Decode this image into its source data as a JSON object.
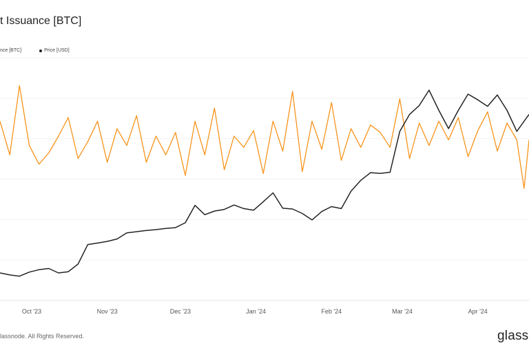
{
  "title": "t Issuance [BTC]",
  "legend": [
    {
      "label": "nce [BTC]",
      "color": "#f7931a",
      "show_dot": false
    },
    {
      "label": "Price [USD]",
      "color": "#222222",
      "show_dot": true
    }
  ],
  "footer": {
    "copyright": "lassnode. All Rights Reserved.",
    "brand": "glass"
  },
  "chart_data": {
    "type": "line",
    "x_tick_labels": [
      "Oct '23",
      "Nov '23",
      "Dec '23",
      "Jan '24",
      "Feb '24",
      "Mar '24",
      "Apr '24"
    ],
    "x_range": [
      "2023-09-18",
      "2024-04-22"
    ],
    "grid": true,
    "series": [
      {
        "name": "Price [USD]",
        "color": "#222222",
        "axis": "right",
        "ylim": [
          20000,
          80000
        ],
        "x": [
          "2023-09-18",
          "2023-09-22",
          "2023-09-26",
          "2023-09-30",
          "2023-10-04",
          "2023-10-08",
          "2023-10-12",
          "2023-10-16",
          "2023-10-20",
          "2023-10-24",
          "2023-10-28",
          "2023-11-01",
          "2023-11-05",
          "2023-11-09",
          "2023-11-13",
          "2023-11-17",
          "2023-11-21",
          "2023-11-25",
          "2023-11-29",
          "2023-12-03",
          "2023-12-07",
          "2023-12-11",
          "2023-12-15",
          "2023-12-19",
          "2023-12-23",
          "2023-12-27",
          "2023-12-31",
          "2024-01-04",
          "2024-01-08",
          "2024-01-12",
          "2024-01-16",
          "2024-01-20",
          "2024-01-24",
          "2024-01-28",
          "2024-02-01",
          "2024-02-05",
          "2024-02-09",
          "2024-02-13",
          "2024-02-17",
          "2024-02-21",
          "2024-02-25",
          "2024-02-29",
          "2024-03-04",
          "2024-03-08",
          "2024-03-12",
          "2024-03-16",
          "2024-03-20",
          "2024-03-24",
          "2024-03-28",
          "2024-04-01",
          "2024-04-05",
          "2024-04-09",
          "2024-04-13",
          "2024-04-17",
          "2024-04-22"
        ],
        "y": [
          26800,
          26300,
          26000,
          27000,
          27600,
          27900,
          26800,
          27100,
          29000,
          33800,
          34200,
          34600,
          35200,
          36700,
          37000,
          37300,
          37500,
          37800,
          38000,
          39200,
          43500,
          41200,
          42100,
          42500,
          43600,
          42700,
          42300,
          44400,
          46600,
          42800,
          42600,
          41500,
          39900,
          42000,
          43200,
          42700,
          47000,
          49700,
          51600,
          51400,
          51700,
          61800,
          66000,
          68200,
          72000,
          67000,
          62500,
          67000,
          71000,
          69600,
          68000,
          70800,
          67000,
          61800,
          66000
        ]
      },
      {
        "name": "nce [BTC]",
        "color": "#f7931a",
        "axis": "left",
        "ylim": [
          0,
          1300
        ],
        "x": [
          "2023-09-18",
          "2023-09-22",
          "2023-09-26",
          "2023-09-30",
          "2023-10-04",
          "2023-10-08",
          "2023-10-12",
          "2023-10-16",
          "2023-10-20",
          "2023-10-24",
          "2023-10-28",
          "2023-11-01",
          "2023-11-05",
          "2023-11-09",
          "2023-11-13",
          "2023-11-17",
          "2023-11-21",
          "2023-11-25",
          "2023-11-29",
          "2023-12-03",
          "2023-12-07",
          "2023-12-11",
          "2023-12-15",
          "2023-12-19",
          "2023-12-23",
          "2023-12-27",
          "2023-12-31",
          "2024-01-04",
          "2024-01-08",
          "2024-01-12",
          "2024-01-16",
          "2024-01-20",
          "2024-01-24",
          "2024-01-28",
          "2024-02-01",
          "2024-02-05",
          "2024-02-09",
          "2024-02-13",
          "2024-02-17",
          "2024-02-21",
          "2024-02-25",
          "2024-02-29",
          "2024-03-04",
          "2024-03-08",
          "2024-03-12",
          "2024-03-16",
          "2024-03-20",
          "2024-03-24",
          "2024-03-28",
          "2024-04-01",
          "2024-04-05",
          "2024-04-09",
          "2024-04-13",
          "2024-04-17",
          "2024-04-20",
          "2024-04-22"
        ],
        "y": [
          960,
          780,
          1150,
          830,
          730,
          790,
          880,
          980,
          760,
          850,
          960,
          740,
          920,
          830,
          990,
          740,
          880,
          780,
          900,
          670,
          960,
          780,
          1030,
          700,
          880,
          820,
          910,
          680,
          960,
          800,
          1120,
          690,
          960,
          810,
          1060,
          750,
          920,
          820,
          940,
          900,
          820,
          1080,
          760,
          950,
          830,
          960,
          860,
          980,
          770,
          910,
          1010,
          800,
          950,
          860,
          600,
          860
        ]
      }
    ]
  }
}
